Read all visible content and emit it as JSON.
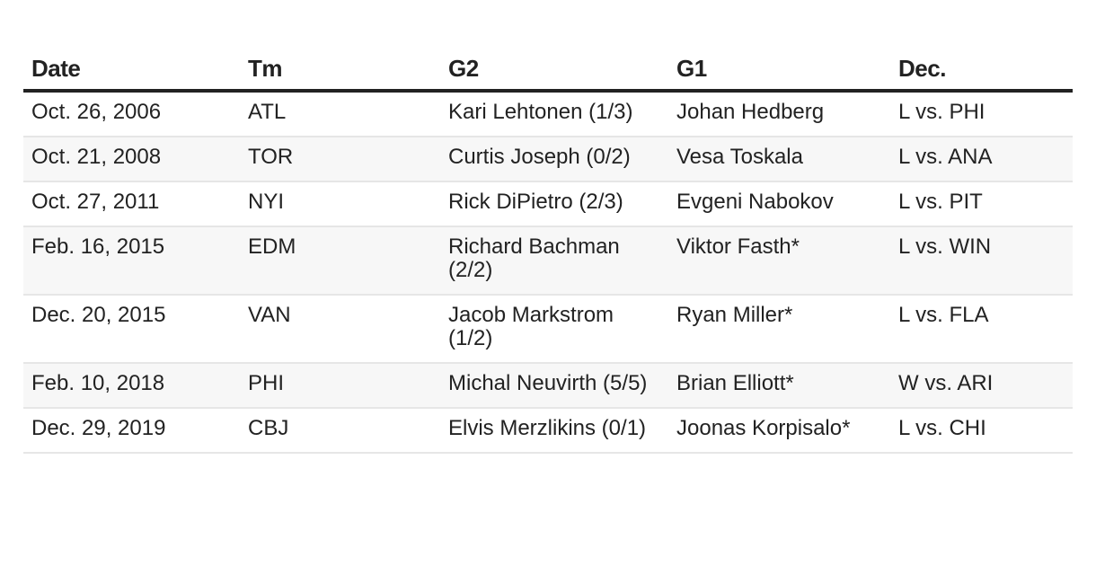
{
  "table": {
    "header": [
      "Date",
      "Tm",
      "G2",
      "G1",
      "Dec."
    ],
    "rows": [
      [
        "Oct. 26, 2006",
        "ATL",
        "Kari Lehtonen (1/3)",
        "Johan Hedberg",
        "L vs. PHI"
      ],
      [
        "Oct. 21, 2008",
        "TOR",
        "Curtis Joseph (0/2)",
        "Vesa Toskala",
        "L vs. ANA"
      ],
      [
        "Oct. 27, 2011",
        "NYI",
        "Rick DiPietro (2/3)",
        "Evgeni Nabokov",
        "L vs. PIT"
      ],
      [
        "Feb. 16, 2015",
        "EDM",
        "Richard Bachman (2/2)",
        "Viktor Fasth*",
        "L vs. WIN"
      ],
      [
        "Dec. 20, 2015",
        "VAN",
        "Jacob Markstrom (1/2)",
        "Ryan Miller*",
        "L vs. FLA"
      ],
      [
        "Feb. 10, 2018",
        "PHI",
        "Michal Neuvirth (5/5)",
        "Brian Elliott*",
        "W vs. ARI"
      ],
      [
        "Dec. 29, 2019",
        "CBJ",
        "Elvis Merzlikins (0/1)",
        "Joonas Korpisalo*",
        "L vs. CHI"
      ]
    ]
  }
}
